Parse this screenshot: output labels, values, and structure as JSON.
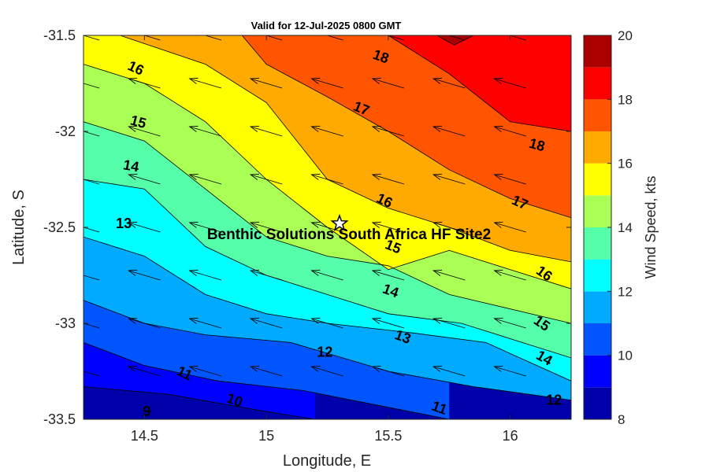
{
  "chart_data": {
    "type": "filled-contour",
    "title": "Valid for 12-Jul-2025 0800 GMT",
    "xlabel": "Longitude, E",
    "ylabel": "Latitude, S",
    "colorbar_label": "Wind Speed, kts",
    "xlim": [
      14.25,
      16.25
    ],
    "ylim": [
      -33.5,
      -31.5
    ],
    "xticks": [
      "14.5",
      "15",
      "15.5",
      "16"
    ],
    "xtick_values": [
      14.5,
      15.0,
      15.5,
      16.0
    ],
    "yticks": [
      "-31.5",
      "-32",
      "-32.5",
      "-33",
      "-33.5"
    ],
    "ytick_values": [
      -31.5,
      -32.0,
      -32.5,
      -33.0,
      -33.5
    ],
    "colorbar_ticks": [
      "8",
      "10",
      "12",
      "14",
      "16",
      "18",
      "20"
    ],
    "colorbar_tick_values": [
      8,
      10,
      12,
      14,
      16,
      18,
      20
    ],
    "levels": [
      8,
      9,
      10,
      11,
      12,
      13,
      14,
      15,
      16,
      17,
      18,
      19,
      20
    ],
    "level_colors": [
      "#0000aa",
      "#0000ff",
      "#0055ff",
      "#00aaff",
      "#00ffff",
      "#55ffaa",
      "#aaff55",
      "#ffff00",
      "#ffaa00",
      "#ff5500",
      "#ff0000",
      "#aa0000"
    ],
    "contours": [
      {
        "level": 9,
        "points": [
          [
            14.25,
            -33.33
          ],
          [
            14.6,
            -33.37
          ],
          [
            15.0,
            -33.46
          ],
          [
            15.2,
            -33.5
          ]
        ]
      },
      {
        "level": 10,
        "points": [
          [
            14.25,
            -33.1
          ],
          [
            14.5,
            -33.22
          ],
          [
            14.8,
            -33.3
          ],
          [
            15.15,
            -33.35
          ],
          [
            15.55,
            -33.45
          ],
          [
            15.75,
            -33.5
          ]
        ]
      },
      {
        "level": 11,
        "points": [
          [
            14.25,
            -32.88
          ],
          [
            14.5,
            -33.0
          ],
          [
            14.75,
            -33.06
          ],
          [
            15.1,
            -33.1
          ],
          [
            15.5,
            -33.25
          ],
          [
            15.85,
            -33.33
          ],
          [
            16.25,
            -33.4
          ]
        ]
      },
      {
        "level": 12,
        "points": [
          [
            14.25,
            -32.55
          ],
          [
            14.5,
            -32.65
          ],
          [
            14.75,
            -32.85
          ],
          [
            15.0,
            -32.95
          ],
          [
            15.25,
            -33.0
          ],
          [
            15.6,
            -33.05
          ],
          [
            15.9,
            -33.1
          ],
          [
            16.25,
            -33.3
          ]
        ]
      },
      {
        "level": 13,
        "points": [
          [
            14.25,
            -32.25
          ],
          [
            14.5,
            -32.3
          ],
          [
            14.75,
            -32.6
          ],
          [
            15.0,
            -32.75
          ],
          [
            15.25,
            -32.85
          ],
          [
            15.5,
            -32.95
          ],
          [
            15.8,
            -33.0
          ],
          [
            16.25,
            -33.18
          ]
        ]
      },
      {
        "level": 14,
        "points": [
          [
            14.25,
            -31.95
          ],
          [
            14.5,
            -32.05
          ],
          [
            14.75,
            -32.3
          ],
          [
            15.0,
            -32.55
          ],
          [
            15.25,
            -32.65
          ],
          [
            15.5,
            -32.7
          ],
          [
            15.75,
            -32.85
          ],
          [
            16.25,
            -33.0
          ]
        ]
      },
      {
        "level": 15,
        "points": [
          [
            14.25,
            -31.65
          ],
          [
            14.5,
            -31.75
          ],
          [
            14.75,
            -31.95
          ],
          [
            15.0,
            -32.25
          ],
          [
            15.25,
            -32.5
          ],
          [
            15.5,
            -32.72
          ],
          [
            15.75,
            -32.62
          ],
          [
            16.0,
            -32.72
          ],
          [
            16.25,
            -32.82
          ]
        ]
      },
      {
        "level": 16,
        "points": [
          [
            14.4,
            -31.5
          ],
          [
            14.75,
            -31.65
          ],
          [
            15.0,
            -31.85
          ],
          [
            15.25,
            -32.25
          ],
          [
            15.5,
            -32.4
          ],
          [
            15.75,
            -32.5
          ],
          [
            16.0,
            -32.62
          ],
          [
            16.25,
            -32.68
          ]
        ]
      },
      {
        "level": 17,
        "points": [
          [
            14.9,
            -31.5
          ],
          [
            15.0,
            -31.65
          ],
          [
            15.25,
            -31.82
          ],
          [
            15.5,
            -32.0
          ],
          [
            15.75,
            -32.2
          ],
          [
            16.0,
            -32.35
          ],
          [
            16.25,
            -32.45
          ]
        ]
      },
      {
        "level": 18,
        "points": [
          [
            15.5,
            -31.5
          ],
          [
            15.75,
            -31.7
          ],
          [
            16.0,
            -31.95
          ],
          [
            16.25,
            -32.0
          ]
        ]
      },
      {
        "level": 19,
        "points": [
          [
            15.7,
            -31.5
          ],
          [
            15.77,
            -31.55
          ],
          [
            15.85,
            -31.5
          ]
        ]
      }
    ],
    "contour_labels": [
      {
        "text": "16",
        "lon": 14.465,
        "lat": -31.67,
        "angle": 25
      },
      {
        "text": "18",
        "lon": 15.47,
        "lat": -31.61,
        "angle": 20
      },
      {
        "text": "17",
        "lon": 15.39,
        "lat": -31.88,
        "angle": 22
      },
      {
        "text": "15",
        "lon": 14.475,
        "lat": -31.95,
        "angle": 15
      },
      {
        "text": "18",
        "lon": 16.11,
        "lat": -32.07,
        "angle": 15
      },
      {
        "text": "14",
        "lon": 14.445,
        "lat": -32.18,
        "angle": 10
      },
      {
        "text": "16",
        "lon": 15.485,
        "lat": -32.36,
        "angle": 25
      },
      {
        "text": "17",
        "lon": 16.04,
        "lat": -32.37,
        "angle": 25
      },
      {
        "text": "13",
        "lon": 14.415,
        "lat": -32.48,
        "angle": 0
      },
      {
        "text": "15",
        "lon": 15.52,
        "lat": -32.6,
        "angle": 22
      },
      {
        "text": "16",
        "lon": 16.14,
        "lat": -32.74,
        "angle": 35
      },
      {
        "text": "14",
        "lon": 15.51,
        "lat": -32.83,
        "angle": 20
      },
      {
        "text": "13",
        "lon": 15.56,
        "lat": -33.07,
        "angle": 20
      },
      {
        "text": "15",
        "lon": 16.13,
        "lat": -33.0,
        "angle": 35
      },
      {
        "text": "12",
        "lon": 15.24,
        "lat": -33.15,
        "angle": 0
      },
      {
        "text": "11",
        "lon": 14.665,
        "lat": -33.26,
        "angle": 25
      },
      {
        "text": "14",
        "lon": 16.14,
        "lat": -33.18,
        "angle": 30
      },
      {
        "text": "10",
        "lon": 14.87,
        "lat": -33.4,
        "angle": 20
      },
      {
        "text": "9",
        "lon": 14.51,
        "lat": -33.46,
        "angle": 0
      },
      {
        "text": "11",
        "lon": 15.71,
        "lat": -33.44,
        "angle": 20
      },
      {
        "text": "12",
        "lon": 16.18,
        "lat": -33.4,
        "angle": 0
      }
    ],
    "wind_vector": {
      "u": -1.0,
      "v": 0.3
    },
    "vector_grid": {
      "lon_start": 14.25,
      "lon_step": 0.25,
      "lat_start": -31.5,
      "lat_step": -0.25
    }
  },
  "site": {
    "name": "Benthic Solutions South Africa HF Site2",
    "lon": 15.3,
    "lat": -32.48,
    "marker": "star-icon"
  }
}
